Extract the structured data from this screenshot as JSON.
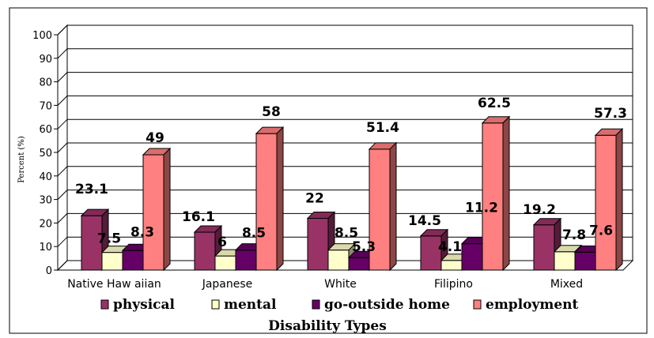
{
  "chart_data": {
    "type": "bar",
    "title": "",
    "xlabel": "Disability Types",
    "ylabel": "Percent (%)",
    "ylim": [
      0,
      100
    ],
    "yticks": [
      "0",
      "10",
      "20",
      "30",
      "40",
      "50",
      "60",
      "70",
      "80",
      "90",
      "100"
    ],
    "categories": [
      "Native Haw aiian",
      "Japanese",
      "White",
      "Filipino",
      "Mixed"
    ],
    "series": [
      {
        "name": "physical",
        "values": [
          23.1,
          16.1,
          22,
          14.5,
          19.2
        ],
        "labels": [
          "23.1",
          "16.1",
          "22",
          "14.5",
          "19.2"
        ],
        "color": "#993366"
      },
      {
        "name": "mental",
        "values": [
          7.5,
          6,
          8.5,
          4.1,
          7.8
        ],
        "labels": [
          "7.5",
          "6",
          "8.5",
          "4.1",
          "7.8"
        ],
        "color": "#ffffcc"
      },
      {
        "name": "go-outside home",
        "values": [
          8.3,
          8.5,
          5.3,
          11.2,
          7.6
        ],
        "labels": [
          "8.3",
          "8.5",
          "5.3",
          "11.2",
          "7.6"
        ],
        "color": "#660066"
      },
      {
        "name": "employment",
        "values": [
          49,
          58,
          51.4,
          62.5,
          57.3
        ],
        "labels": [
          "49",
          "58",
          "51.4",
          "62.5",
          "57.3"
        ],
        "color": "#ff8080"
      }
    ],
    "grid": true,
    "legend": "bottom",
    "style": "3d-bar"
  }
}
